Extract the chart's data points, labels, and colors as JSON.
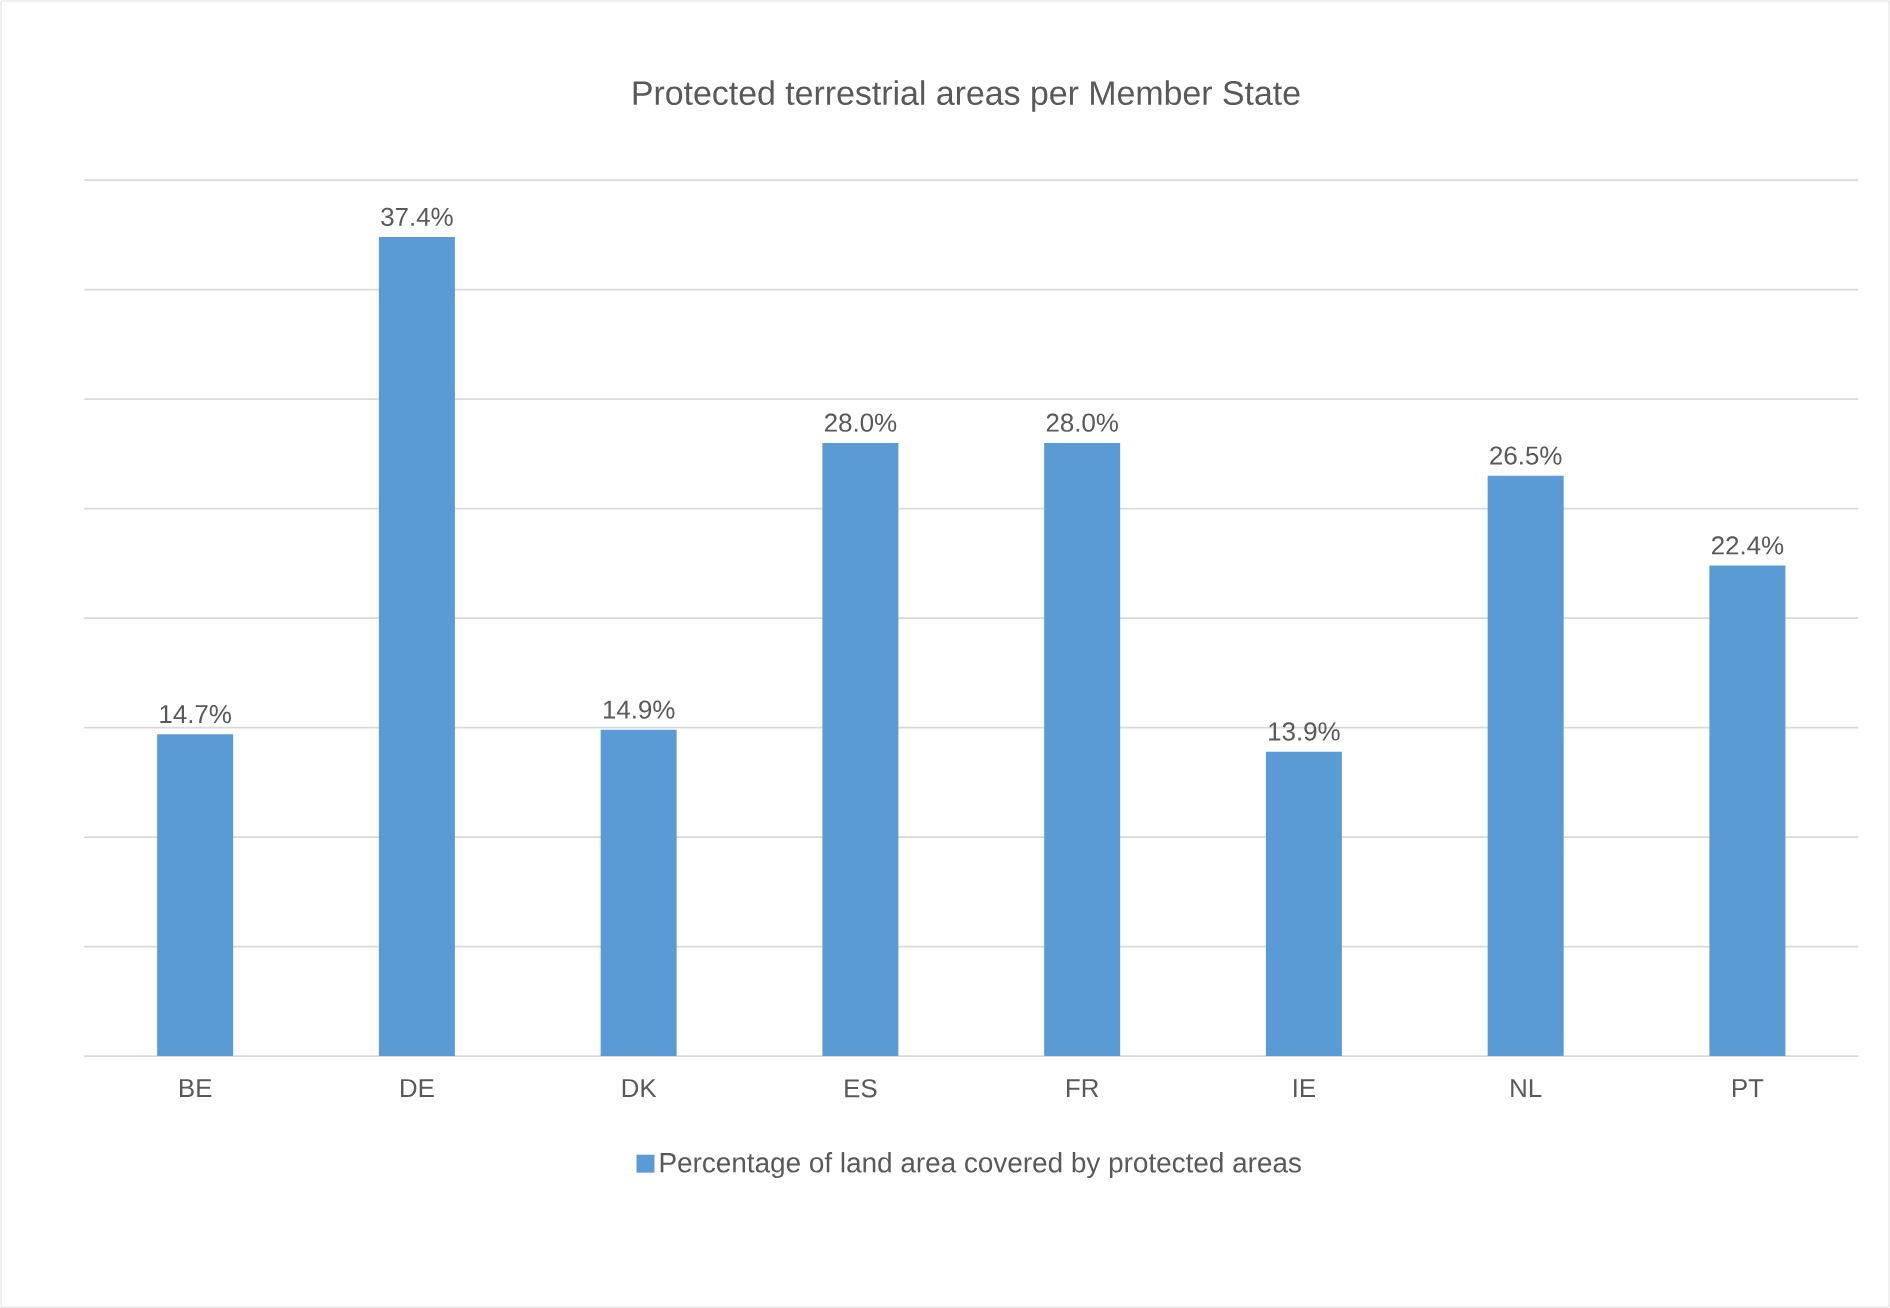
{
  "chart_data": {
    "type": "bar",
    "title": "Protected terrestrial areas per Member State",
    "categories": [
      "BE",
      "DE",
      "DK",
      "ES",
      "FR",
      "IE",
      "NL",
      "PT"
    ],
    "series": [
      {
        "name": "Percentage of land area covered by protected areas",
        "color": "#5b9bd5",
        "values": [
          14.7,
          37.4,
          14.9,
          28.0,
          28.0,
          13.9,
          26.5,
          22.4
        ],
        "value_labels": [
          "14.7%",
          "37.4%",
          "14.9%",
          "28.0%",
          "28.0%",
          "13.9%",
          "26.5%",
          "22.4%"
        ]
      }
    ],
    "ylim": [
      0,
      40
    ],
    "yticks": [
      {
        "value": 0,
        "label": null
      },
      {
        "value": 5,
        "label": null
      },
      {
        "value": 10,
        "label": null
      },
      {
        "value": 15,
        "label": null
      },
      {
        "value": 20,
        "label": null
      },
      {
        "value": 25,
        "label": null
      },
      {
        "value": 30,
        "label": null
      },
      {
        "value": 35,
        "label": null
      },
      {
        "value": 40,
        "label": null
      }
    ],
    "tick_labels": "x",
    "grid": "y",
    "legend": "bottom"
  }
}
